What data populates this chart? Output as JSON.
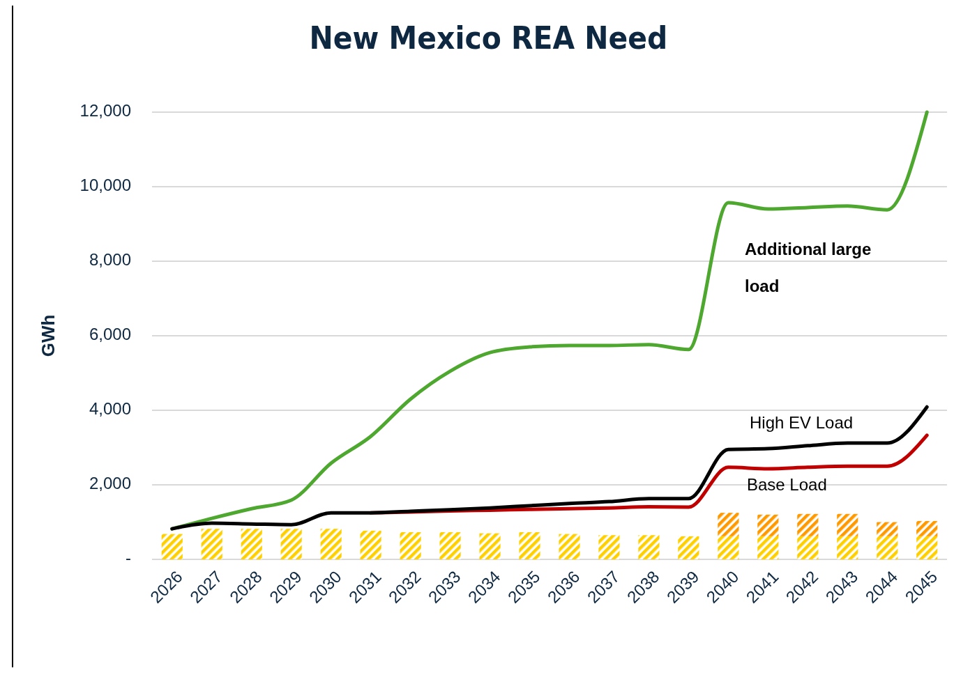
{
  "chart_data": {
    "type": "line",
    "title": "New Mexico REA Need",
    "ylabel": "GWh",
    "categories": [
      "2026",
      "2027",
      "2028",
      "2029",
      "2030",
      "2031",
      "2032",
      "2033",
      "2034",
      "2035",
      "2036",
      "2037",
      "2038",
      "2039",
      "2040",
      "2041",
      "2042",
      "2043",
      "2044",
      "2045"
    ],
    "series": [
      {
        "type": "bar",
        "color": "#ffd000",
        "values": [
          680,
          820,
          820,
          820,
          820,
          770,
          730,
          730,
          700,
          730,
          680,
          650,
          650,
          620,
          620,
          620,
          620,
          620,
          620,
          620
        ]
      },
      {
        "type": "bar",
        "color": "#ff9900",
        "values": [
          null,
          null,
          null,
          null,
          null,
          null,
          null,
          null,
          null,
          null,
          null,
          null,
          null,
          null,
          630,
          580,
          600,
          600,
          380,
          410
        ]
      },
      {
        "name": "Additional large load",
        "color": "#4ea72e",
        "values": [
          820,
          1100,
          1360,
          1590,
          2580,
          3300,
          4300,
          5050,
          5550,
          5700,
          5740,
          5740,
          5760,
          5630,
          9570,
          9400,
          9440,
          9480,
          9380,
          12000
        ]
      },
      {
        "name": "Base Load",
        "color": "#c00000",
        "values": [
          null,
          null,
          null,
          null,
          null,
          1250,
          1270,
          1300,
          1320,
          1340,
          1360,
          1380,
          1410,
          1400,
          2470,
          2430,
          2470,
          2500,
          2500,
          3330
        ]
      },
      {
        "name": "High EV Load",
        "color": "#000000",
        "values": [
          820,
          970,
          950,
          930,
          1250,
          1250,
          1290,
          1330,
          1380,
          1440,
          1500,
          1550,
          1630,
          1630,
          2950,
          2970,
          3050,
          3120,
          3120,
          4090
        ]
      }
    ],
    "stacked": true,
    "ylim": [
      0,
      12000
    ],
    "yticks": [
      {
        "value": 0,
        "label": "-"
      },
      {
        "value": 2000,
        "label": "2,000"
      },
      {
        "value": 4000,
        "label": "4,000"
      },
      {
        "value": 6000,
        "label": "6,000"
      },
      {
        "value": 8000,
        "label": "8,000"
      },
      {
        "value": 10000,
        "label": "10,000"
      },
      {
        "value": 12000,
        "label": "12,000"
      }
    ],
    "grid": "y"
  }
}
